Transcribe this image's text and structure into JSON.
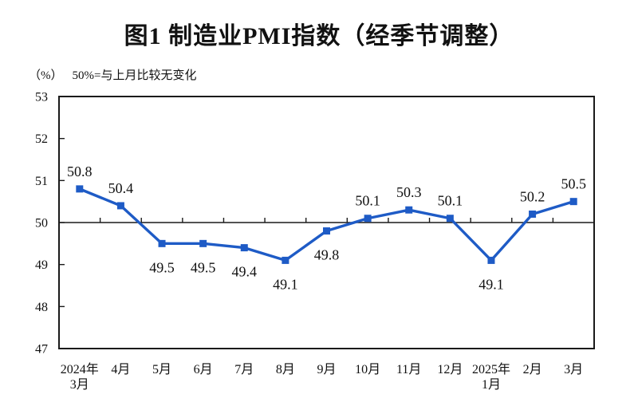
{
  "chart_data": {
    "type": "line",
    "title": "图1  制造业PMI指数（经季节调整）",
    "unit_label": "（%）",
    "note": "50%=与上月比较无变化",
    "categories": [
      "2024年\n3月",
      "4月",
      "5月",
      "6月",
      "7月",
      "8月",
      "9月",
      "10月",
      "11月",
      "12月",
      "2025年\n1月",
      "2月",
      "3月"
    ],
    "values": [
      50.8,
      50.4,
      49.5,
      49.5,
      49.4,
      49.1,
      49.8,
      50.1,
      50.3,
      50.1,
      49.1,
      50.2,
      50.5
    ],
    "yticks": [
      47,
      48,
      49,
      50,
      51,
      52,
      53
    ],
    "ylim": [
      47,
      53
    ],
    "reference_line": 50,
    "grid": "off",
    "legend": "none",
    "line_color": "#1e5bc6",
    "marker": "square",
    "axis_color": "#1a1a1a",
    "text_color": "#111111"
  }
}
